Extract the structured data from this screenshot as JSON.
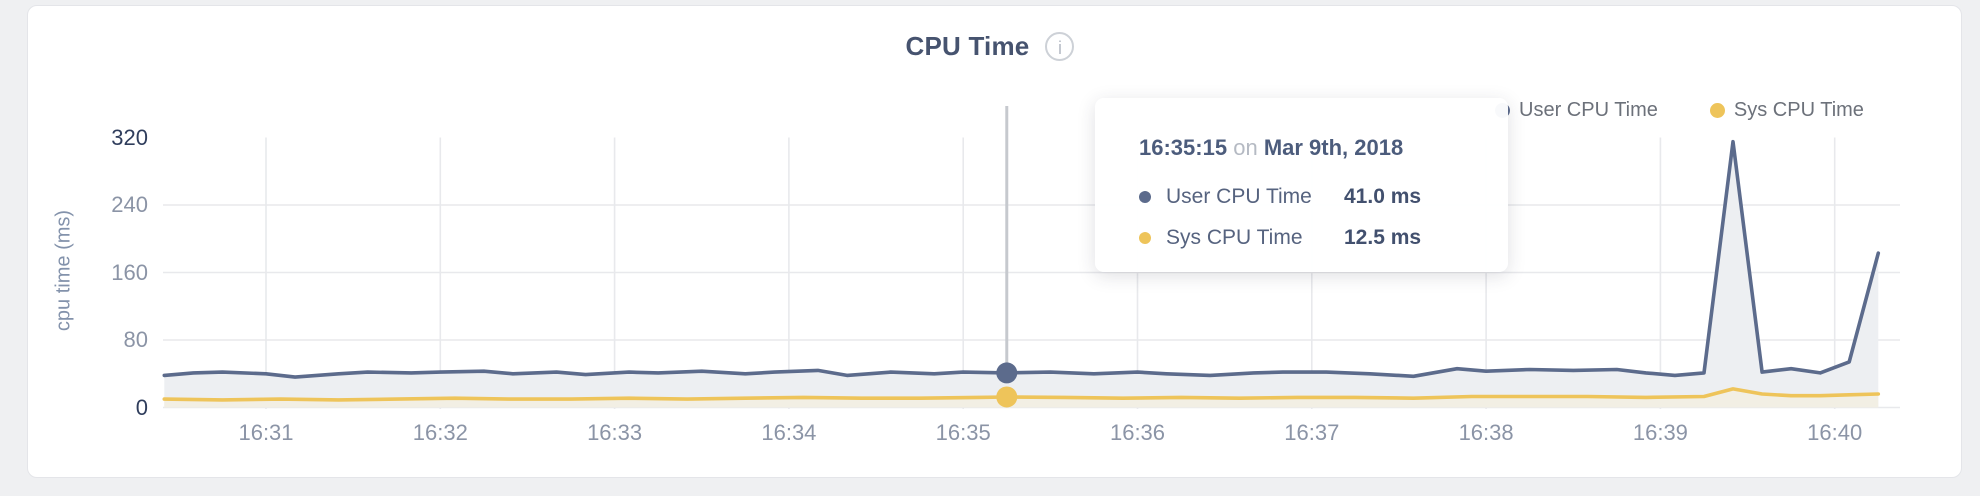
{
  "header": {
    "title": "CPU Time",
    "info_glyph": "i"
  },
  "colors": {
    "user_series": "#5c6b8c",
    "sys_series": "#eec45a",
    "user_fill": "#edeff2",
    "sys_fill": "#f2efe4",
    "gridline": "#e8e9ec",
    "crosshair": "#c6c9ce"
  },
  "legend": [
    {
      "label": "User CPU Time",
      "color": "#5c6b8c"
    },
    {
      "label": "Sys CPU Time",
      "color": "#eec45a"
    }
  ],
  "tooltip": {
    "time": "16:35:15",
    "connector": "on",
    "date": "Mar 9th, 2018",
    "rows": [
      {
        "label": "User CPU Time",
        "value": "41.0 ms",
        "color": "#5c6b8c"
      },
      {
        "label": "Sys CPU Time",
        "value": "12.5 ms",
        "color": "#eec45a"
      }
    ]
  },
  "chart_data": {
    "type": "area",
    "title": "CPU Time",
    "xlabel": "",
    "ylabel": "cpu time (ms)",
    "ylim": [
      0,
      320
    ],
    "yticks": [
      0,
      80,
      160,
      240,
      320
    ],
    "xticks": [
      "16:31",
      "16:32",
      "16:33",
      "16:34",
      "16:35",
      "16:36",
      "16:37",
      "16:38",
      "16:39",
      "16:40"
    ],
    "grid": true,
    "legend_position": "top-right",
    "series": [
      {
        "name": "User CPU Time",
        "unit": "ms",
        "points": [
          [
            "16:30:25",
            38
          ],
          [
            "16:30:35",
            41
          ],
          [
            "16:30:45",
            42
          ],
          [
            "16:31:00",
            40
          ],
          [
            "16:31:10",
            36
          ],
          [
            "16:31:25",
            40
          ],
          [
            "16:31:35",
            42
          ],
          [
            "16:31:50",
            41
          ],
          [
            "16:32:00",
            42
          ],
          [
            "16:32:15",
            43
          ],
          [
            "16:32:25",
            40
          ],
          [
            "16:32:40",
            42
          ],
          [
            "16:32:50",
            39
          ],
          [
            "16:33:05",
            42
          ],
          [
            "16:33:15",
            41
          ],
          [
            "16:33:30",
            43
          ],
          [
            "16:33:45",
            40
          ],
          [
            "16:33:55",
            42
          ],
          [
            "16:34:10",
            44
          ],
          [
            "16:34:20",
            38
          ],
          [
            "16:34:35",
            42
          ],
          [
            "16:34:50",
            40
          ],
          [
            "16:35:00",
            42
          ],
          [
            "16:35:15",
            41
          ],
          [
            "16:35:30",
            42
          ],
          [
            "16:35:45",
            40
          ],
          [
            "16:36:00",
            42
          ],
          [
            "16:36:10",
            40
          ],
          [
            "16:36:25",
            38
          ],
          [
            "16:36:40",
            41
          ],
          [
            "16:36:50",
            42
          ],
          [
            "16:37:05",
            42
          ],
          [
            "16:37:20",
            40
          ],
          [
            "16:37:35",
            37
          ],
          [
            "16:37:50",
            46
          ],
          [
            "16:38:00",
            43
          ],
          [
            "16:38:15",
            45
          ],
          [
            "16:38:30",
            44
          ],
          [
            "16:38:45",
            45
          ],
          [
            "16:38:55",
            41
          ],
          [
            "16:39:05",
            38
          ],
          [
            "16:39:15",
            41
          ],
          [
            "16:39:25",
            315
          ],
          [
            "16:39:35",
            42
          ],
          [
            "16:39:45",
            46
          ],
          [
            "16:39:55",
            41
          ],
          [
            "16:40:05",
            54
          ],
          [
            "16:40:15",
            183
          ]
        ]
      },
      {
        "name": "Sys CPU Time",
        "unit": "ms",
        "points": [
          [
            "16:30:25",
            10
          ],
          [
            "16:30:45",
            9
          ],
          [
            "16:31:05",
            10
          ],
          [
            "16:31:25",
            9
          ],
          [
            "16:31:45",
            10
          ],
          [
            "16:32:05",
            11
          ],
          [
            "16:32:25",
            10
          ],
          [
            "16:32:45",
            10
          ],
          [
            "16:33:05",
            11
          ],
          [
            "16:33:25",
            10
          ],
          [
            "16:33:45",
            11
          ],
          [
            "16:34:05",
            12
          ],
          [
            "16:34:25",
            11
          ],
          [
            "16:34:45",
            11
          ],
          [
            "16:35:05",
            12
          ],
          [
            "16:35:15",
            12.5
          ],
          [
            "16:35:35",
            12
          ],
          [
            "16:35:55",
            11
          ],
          [
            "16:36:15",
            12
          ],
          [
            "16:36:35",
            11
          ],
          [
            "16:36:55",
            12
          ],
          [
            "16:37:15",
            12
          ],
          [
            "16:37:35",
            11
          ],
          [
            "16:37:55",
            13
          ],
          [
            "16:38:15",
            13
          ],
          [
            "16:38:35",
            13
          ],
          [
            "16:38:55",
            12
          ],
          [
            "16:39:15",
            13
          ],
          [
            "16:39:25",
            22
          ],
          [
            "16:39:35",
            16
          ],
          [
            "16:39:45",
            14
          ],
          [
            "16:39:55",
            14
          ],
          [
            "16:40:05",
            15
          ],
          [
            "16:40:15",
            16
          ]
        ]
      }
    ],
    "highlight": {
      "time": "16:35:15",
      "date": "Mar 9th, 2018",
      "user_cpu_ms": 41.0,
      "sys_cpu_ms": 12.5
    }
  }
}
